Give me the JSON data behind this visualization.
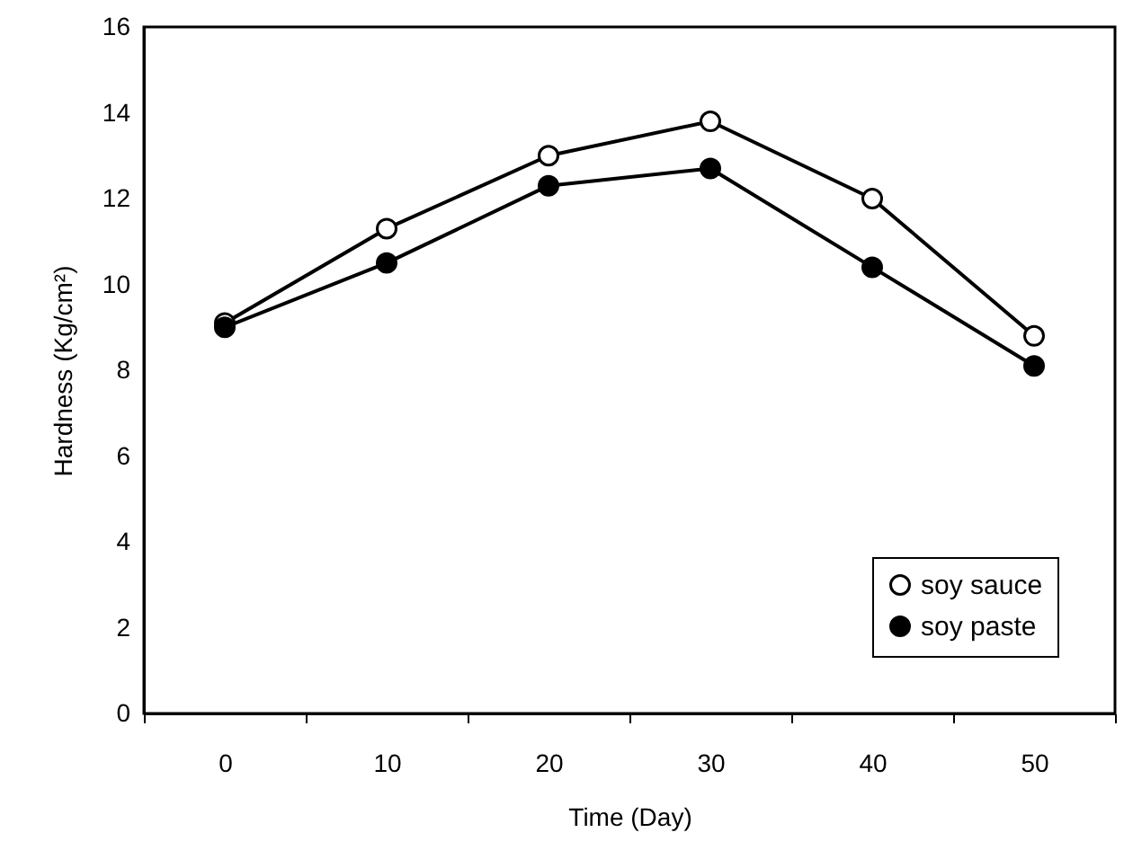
{
  "chart_data": {
    "type": "line",
    "xlabel": "Time (Day)",
    "ylabel": "Hardness (Kg/cm²)",
    "categories": [
      "0",
      "10",
      "20",
      "30",
      "40",
      "50"
    ],
    "series": [
      {
        "name": "soy sauce",
        "color": "#000000",
        "values": [
          9.1,
          11.3,
          13.0,
          13.8,
          12.0,
          8.8
        ]
      },
      {
        "name": "soy paste",
        "color": "#000000",
        "values": [
          9.0,
          10.5,
          12.3,
          12.7,
          10.4,
          8.1
        ]
      }
    ],
    "ylim": [
      0,
      16
    ],
    "yticks": [
      0,
      2,
      4,
      6,
      8,
      10,
      12,
      14,
      16
    ],
    "grid": false,
    "legend": "bottom right",
    "marker": "circle",
    "line_style": "solid"
  }
}
